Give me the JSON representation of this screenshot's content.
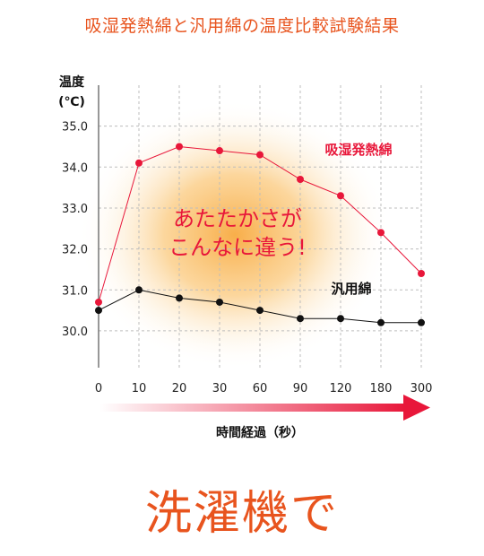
{
  "title": "吸湿発熱綿と汎用綿の温度比較試験結果",
  "footer": "洗濯機で",
  "annotation": [
    "あたたかさが",
    "こんなに違う!"
  ],
  "colors": {
    "accent": "#e8541e",
    "series1": "#e8173a",
    "series2": "#111111",
    "arrow": "#e8173a"
  },
  "chart_data": {
    "type": "line",
    "ylabel": [
      "温度",
      "(℃)"
    ],
    "xlabel": "時間経過（秒）",
    "categories": [
      "0",
      "10",
      "20",
      "30",
      "60",
      "90",
      "120",
      "180",
      "300"
    ],
    "yticks": [
      "30.0",
      "31.0",
      "32.0",
      "33.0",
      "34.0",
      "35.0"
    ],
    "ylim": [
      29.1,
      36.0
    ],
    "grid": true,
    "series": [
      {
        "name": "吸湿発熱綿",
        "values": [
          30.7,
          34.1,
          34.5,
          34.4,
          34.3,
          33.7,
          33.3,
          32.4,
          31.4
        ]
      },
      {
        "name": "汎用綿",
        "values": [
          30.5,
          31.0,
          30.8,
          30.7,
          30.5,
          30.3,
          30.3,
          30.2,
          30.2
        ]
      }
    ]
  }
}
